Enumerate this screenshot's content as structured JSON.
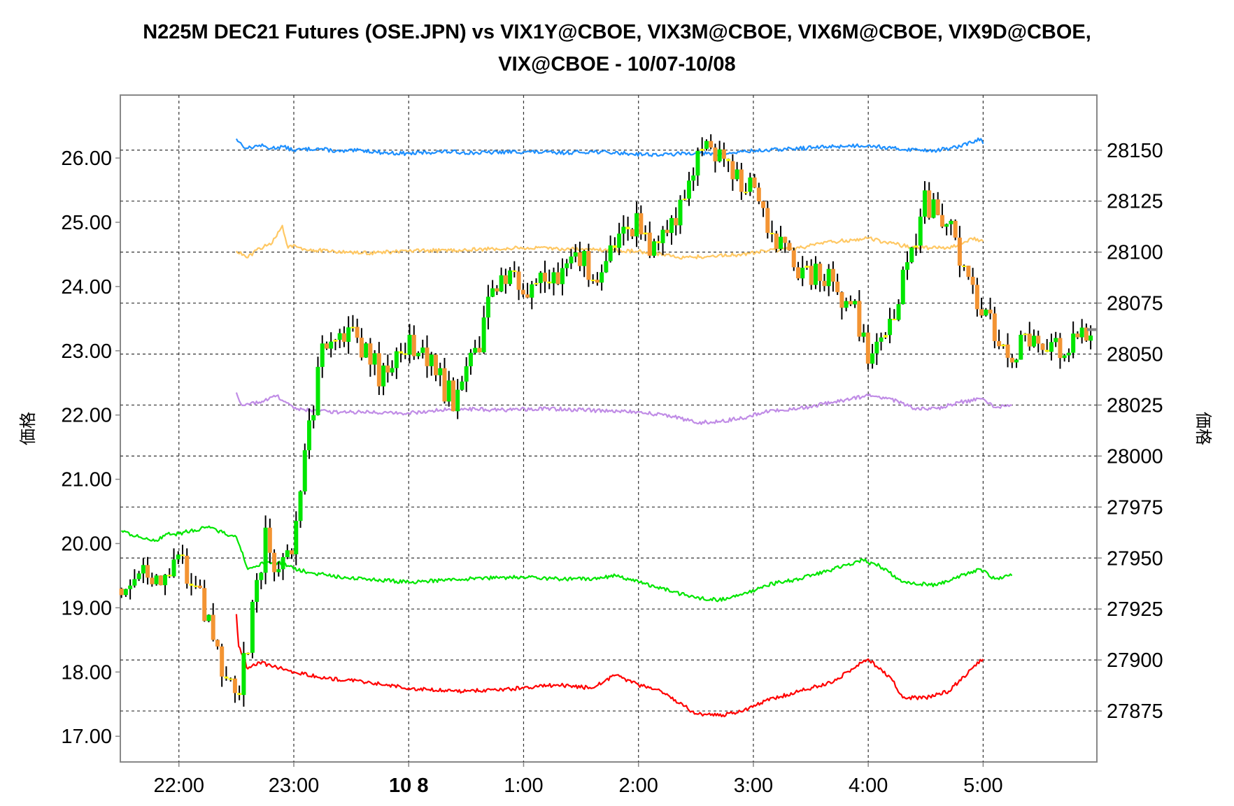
{
  "title_lines": [
    "N225M DEC21 Futures (OSE.JPN) vs VIX1Y@CBOE, VIX3M@CBOE, VIX6M@CBOE, VIX9D@CBOE,",
    "VIX@CBOE - 10/07-10/08"
  ],
  "colors": {
    "grid": "#333333",
    "frame": "#888888",
    "vix1y": "#1e90ff",
    "vix3m": "#ffc864",
    "vix6m": "#c08ce6",
    "vix9d": "#ff0000",
    "vix": "#00e600",
    "candle_up": "#00e600",
    "candle_down": "#f39433",
    "wick": "#000000",
    "doji": "#ffff00"
  },
  "chart_data": {
    "type": "line",
    "title": "N225M DEC21 Futures (OSE.JPN) vs VIX1Y@CBOE, VIX3M@CBOE, VIX6M@CBOE, VIX9D@CBOE, VIX@CBOE - 10/07-10/08",
    "x_ticks": [
      "22:00",
      "23:00",
      "10 8",
      "1:00",
      "2:00",
      "3:00",
      "4:00",
      "5:00"
    ],
    "x_tick_hours": [
      22,
      23,
      24,
      25,
      26,
      27,
      28,
      29
    ],
    "x_range_hours": [
      21.49,
      29.99
    ],
    "y_left": {
      "label": "価格",
      "ticks": [
        "17.00",
        "18.00",
        "19.00",
        "20.00",
        "21.00",
        "22.00",
        "23.00",
        "24.00",
        "25.00",
        "26.00"
      ],
      "range": [
        16.6,
        26.98
      ]
    },
    "y_right": {
      "label": "価格",
      "ticks": [
        "27875",
        "27900",
        "27925",
        "27950",
        "27975",
        "28000",
        "28025",
        "28050",
        "28075",
        "28100",
        "28125",
        "28150"
      ],
      "range": [
        27850,
        28177
      ]
    },
    "series": [
      {
        "name": "VIX1Y@CBOE",
        "axis": "left",
        "color_key": "vix1y",
        "x": [
          22.5,
          22.55,
          22.6,
          22.7,
          22.8,
          22.9,
          23.0,
          23.2,
          23.4,
          23.6,
          23.8,
          24.0,
          24.3,
          24.6,
          25.0,
          25.3,
          25.6,
          25.9,
          26.2,
          26.5,
          26.7,
          26.9,
          27.1,
          27.4,
          27.7,
          28.0,
          28.2,
          28.4,
          28.6,
          28.8,
          28.98,
          29.0
        ],
        "y": [
          26.3,
          26.2,
          26.15,
          26.2,
          26.15,
          26.18,
          26.12,
          26.15,
          26.1,
          26.12,
          26.08,
          26.07,
          26.1,
          26.08,
          26.1,
          26.08,
          26.1,
          26.07,
          26.05,
          26.08,
          26.05,
          26.1,
          26.12,
          26.15,
          26.18,
          26.2,
          26.15,
          26.13,
          26.12,
          26.18,
          26.3,
          26.22
        ]
      },
      {
        "name": "VIX3M@CBOE",
        "axis": "left",
        "color_key": "vix3m",
        "x": [
          22.5,
          22.6,
          22.7,
          22.8,
          22.9,
          22.95,
          23.0,
          23.1,
          23.3,
          23.6,
          24.0,
          24.5,
          25.0,
          25.5,
          26.0,
          26.4,
          26.6,
          26.9,
          27.1,
          27.4,
          27.7,
          28.0,
          28.4,
          28.7,
          28.9,
          29.0
        ],
        "y": [
          24.55,
          24.45,
          24.6,
          24.65,
          24.95,
          24.6,
          24.65,
          24.58,
          24.55,
          24.52,
          24.55,
          24.57,
          24.6,
          24.58,
          24.55,
          24.45,
          24.47,
          24.5,
          24.55,
          24.6,
          24.7,
          24.75,
          24.6,
          24.6,
          24.75,
          24.7
        ]
      },
      {
        "name": "VIX6M@CBOE",
        "axis": "left",
        "color_key": "vix6m",
        "x": [
          22.5,
          22.55,
          22.7,
          22.85,
          23.0,
          23.3,
          23.6,
          24.0,
          24.4,
          24.8,
          25.2,
          25.6,
          26.0,
          26.3,
          26.5,
          26.7,
          26.9,
          27.1,
          27.4,
          27.7,
          28.0,
          28.2,
          28.4,
          28.6,
          28.8,
          28.98,
          29.1,
          29.25
        ],
        "y": [
          22.35,
          22.15,
          22.2,
          22.3,
          22.1,
          22.05,
          22.05,
          22.03,
          22.1,
          22.08,
          22.1,
          22.07,
          22.05,
          21.98,
          21.88,
          21.9,
          21.95,
          22.05,
          22.1,
          22.2,
          22.3,
          22.25,
          22.1,
          22.1,
          22.2,
          22.25,
          22.12,
          22.15
        ]
      },
      {
        "name": "VIX9D@CBOE",
        "axis": "left",
        "color_key": "vix9d",
        "x": [
          22.5,
          22.52,
          22.6,
          22.7,
          22.8,
          22.9,
          23.0,
          23.3,
          23.6,
          24.0,
          24.5,
          25.0,
          25.3,
          25.6,
          25.8,
          26.0,
          26.2,
          26.5,
          26.7,
          26.9,
          27.1,
          27.4,
          27.7,
          27.9,
          28.0,
          28.2,
          28.3,
          28.5,
          28.7,
          28.9,
          29.0
        ],
        "y": [
          18.9,
          18.4,
          18.05,
          18.15,
          18.1,
          18.05,
          18.0,
          17.9,
          17.85,
          17.75,
          17.7,
          17.75,
          17.8,
          17.75,
          17.95,
          17.8,
          17.7,
          17.35,
          17.32,
          17.38,
          17.55,
          17.7,
          17.85,
          18.1,
          18.2,
          17.9,
          17.6,
          17.6,
          17.7,
          18.05,
          18.2
        ]
      },
      {
        "name": "VIX@CBOE",
        "axis": "left",
        "color_key": "vix",
        "x": [
          21.5,
          21.65,
          21.8,
          21.9,
          22.0,
          22.1,
          22.25,
          22.5,
          22.52,
          22.6,
          22.75,
          22.9,
          23.0,
          23.3,
          23.6,
          24.0,
          24.5,
          25.0,
          25.3,
          25.6,
          25.8,
          26.0,
          26.2,
          26.5,
          26.7,
          26.9,
          27.1,
          27.4,
          27.7,
          27.95,
          28.0,
          28.1,
          28.3,
          28.6,
          28.8,
          28.98,
          29.1,
          29.25
        ],
        "y": [
          20.2,
          20.1,
          20.05,
          20.15,
          20.15,
          20.2,
          20.25,
          20.1,
          20.0,
          19.6,
          19.7,
          19.7,
          19.6,
          19.5,
          19.45,
          19.4,
          19.45,
          19.48,
          19.45,
          19.45,
          19.5,
          19.4,
          19.3,
          19.15,
          19.12,
          19.2,
          19.35,
          19.45,
          19.6,
          19.75,
          19.7,
          19.65,
          19.4,
          19.35,
          19.5,
          19.6,
          19.45,
          19.5
        ]
      },
      {
        "name": "N225M DEC21 Futures (OSE.JPN)",
        "axis": "right",
        "render": "candlestick",
        "x": [
          21.5,
          21.62,
          21.75,
          21.88,
          22.0,
          22.12,
          22.25,
          22.38,
          22.5,
          22.62,
          22.75,
          22.88,
          23.0,
          23.12,
          23.25,
          23.38,
          23.5,
          23.62,
          23.75,
          23.88,
          24.0,
          24.12,
          24.25,
          24.38,
          24.5,
          24.62,
          24.75,
          24.88,
          25.0,
          25.12,
          25.25,
          25.38,
          25.5,
          25.62,
          25.75,
          25.88,
          26.0,
          26.12,
          26.25,
          26.38,
          26.5,
          26.62,
          26.75,
          26.88,
          27.0,
          27.12,
          27.25,
          27.38,
          27.5,
          27.62,
          27.75,
          27.88,
          28.0,
          28.12,
          28.25,
          28.38,
          28.5,
          28.62,
          28.75,
          28.88,
          29.0,
          29.12,
          29.25,
          29.38,
          29.5,
          29.62,
          29.75,
          29.88,
          29.96
        ],
        "y": [
          27935,
          27945,
          27942,
          27944,
          27948,
          27940,
          27918,
          27895,
          27880,
          27915,
          27960,
          27940,
          27960,
          28010,
          28050,
          28065,
          28060,
          28050,
          28040,
          28048,
          28058,
          28050,
          28038,
          28028,
          28040,
          28055,
          28085,
          28090,
          28080,
          28085,
          28090,
          28093,
          28095,
          28090,
          28098,
          28110,
          28115,
          28100,
          28115,
          28120,
          28145,
          28150,
          28140,
          28135,
          28130,
          28110,
          28100,
          28093,
          28090,
          28088,
          28080,
          28070,
          28050,
          28055,
          28075,
          28100,
          28125,
          28120,
          28110,
          28080,
          28070,
          28060,
          28050,
          28055,
          28050,
          28052,
          28055,
          28058,
          28062
        ]
      }
    ]
  }
}
